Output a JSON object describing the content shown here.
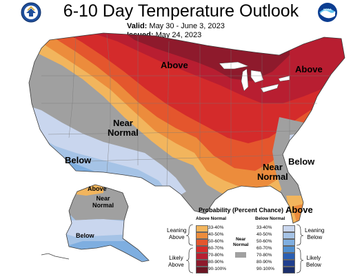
{
  "header": {
    "title": "6-10 Day Temperature Outlook",
    "valid_label": "Valid:",
    "valid_value": "May 30 - June 3, 2023",
    "issued_label": "Issued:",
    "issued_value": "May 24, 2023"
  },
  "logos": {
    "left": "commerce-seal",
    "right": "noaa-logo",
    "right_text": "NOAA"
  },
  "map_labels": {
    "above_north": "Above",
    "above_northeast": "Above",
    "near_normal_west": [
      "Near",
      "Normal"
    ],
    "below_southwest": "Below",
    "near_normal_southeast": [
      "Near",
      "Normal"
    ],
    "below_southeast": "Below",
    "above_florida": "Above",
    "alaska_above": "Above",
    "alaska_near_normal": [
      "Near",
      "Normal"
    ],
    "alaska_below": "Below"
  },
  "legend": {
    "title": "Probability (Percent Chance)",
    "above_header": "Above Normal",
    "below_header": "Below Normal",
    "near_label": [
      "Near",
      "Normal"
    ],
    "leaning_above": [
      "Leaning",
      "Above"
    ],
    "likely_above": [
      "Likely",
      "Above"
    ],
    "leaning_below": [
      "Leaning",
      "Below"
    ],
    "likely_below": [
      "Likely",
      "Below"
    ],
    "above_classes": [
      "33-40%",
      "40-50%",
      "50-60%",
      "60-70%",
      "70-80%",
      "80-90%",
      "90-100%"
    ],
    "below_classes": [
      "33-40%",
      "40-50%",
      "50-60%",
      "60-70%",
      "70-80%",
      "80-90%",
      "90-100%"
    ],
    "above_colors": [
      "#f2b55d",
      "#ec8c3c",
      "#e4562d",
      "#d42b2b",
      "#b81e31",
      "#8e1a2c",
      "#6b1623"
    ],
    "below_colors": [
      "#c9d6ee",
      "#a5c3e6",
      "#7eaee0",
      "#4f8fd1",
      "#2a5fb3",
      "#203f8f",
      "#1b2f6b"
    ],
    "near_color": "#a0a0a0"
  }
}
